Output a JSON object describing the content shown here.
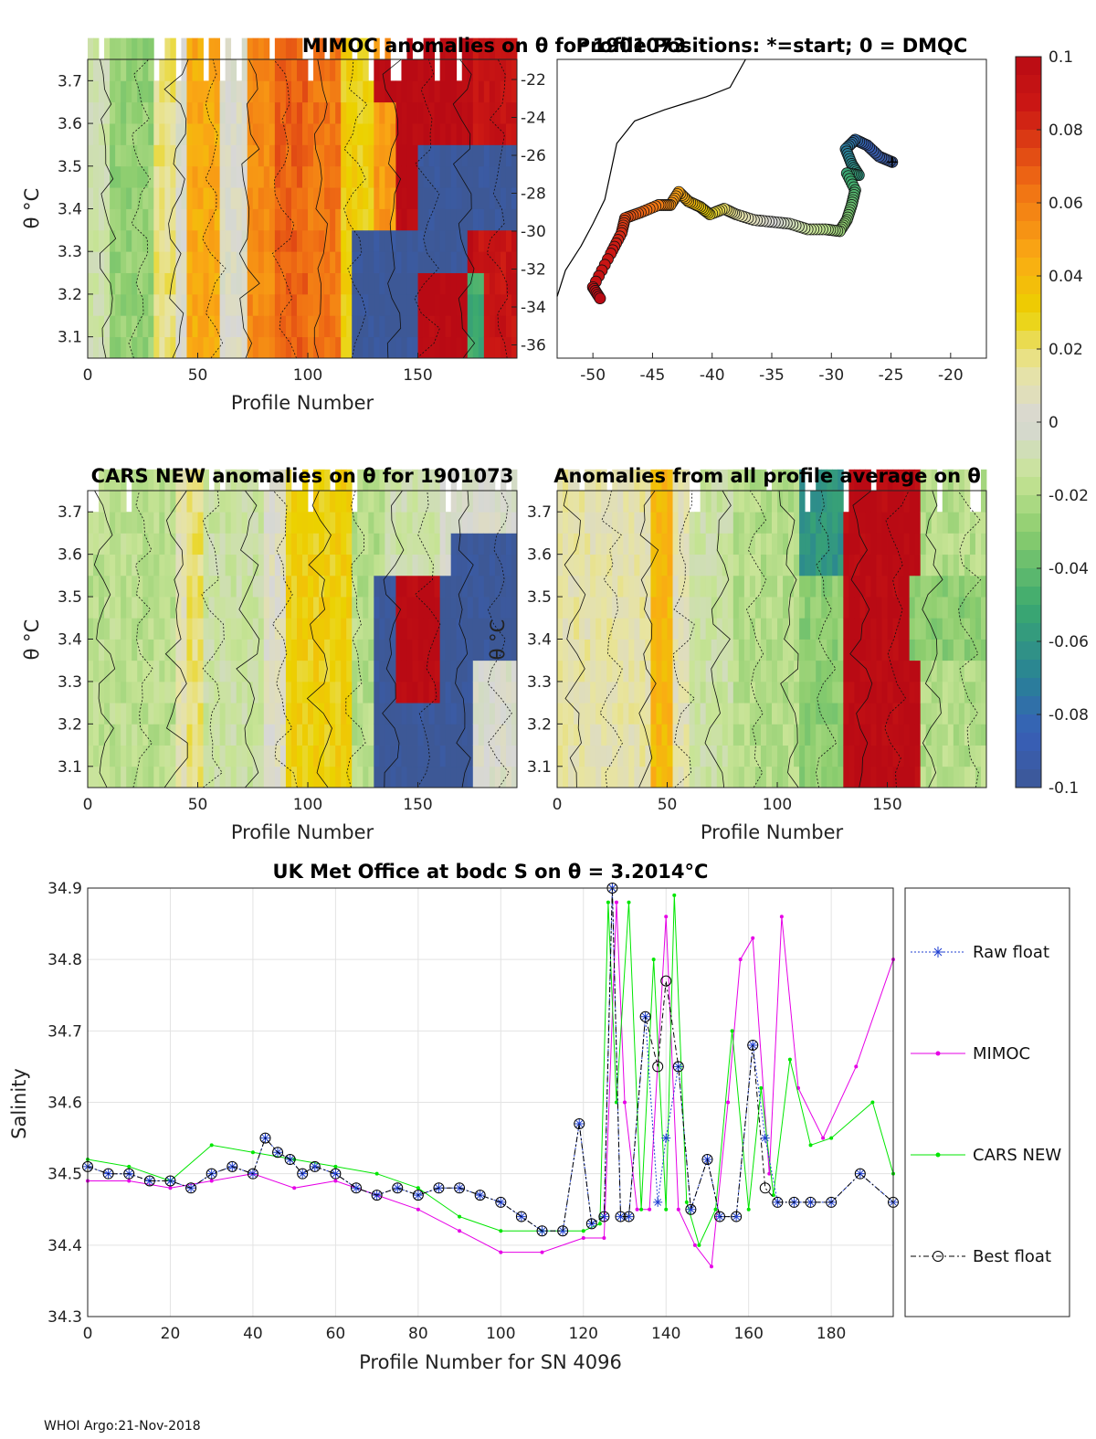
{
  "chart_data": [
    {
      "id": "mimoc",
      "type": "heatmap",
      "title": "MIMOC anomalies on θ  for 1901073",
      "xlabel": "Profile Number",
      "ylabel": "θ °C",
      "xlim": [
        0,
        195
      ],
      "ylim": [
        3.05,
        3.75
      ],
      "xticks": [
        0,
        50,
        100,
        150
      ],
      "yticks": [
        3.1,
        3.2,
        3.3,
        3.4,
        3.5,
        3.6,
        3.7
      ],
      "bands": [
        {
          "x": [
            0,
            45
          ],
          "a": -0.01
        },
        {
          "x": [
            10,
            28
          ],
          "a": -0.028
        },
        {
          "x": [
            28,
            40
          ],
          "a": 0.018
        },
        {
          "x": [
            40,
            45
          ],
          "a": 0.002
        },
        {
          "x": [
            45,
            60
          ],
          "a": 0.045
        },
        {
          "x": [
            60,
            72
          ],
          "a": 0.002
        },
        {
          "x": [
            72,
            85
          ],
          "a": 0.055
        },
        {
          "x": [
            85,
            98
          ],
          "a": 0.068
        },
        {
          "x": [
            98,
            115
          ],
          "a": 0.062
        },
        {
          "x": [
            115,
            128
          ],
          "a": 0.03
        },
        {
          "x": [
            128,
            140
          ],
          "a": 0.05
        },
        {
          "x": [
            140,
            160
          ],
          "a": 0.1
        },
        {
          "x": [
            160,
            175
          ],
          "a": 0.1
        },
        {
          "x": [
            175,
            195
          ],
          "a": 0.09
        }
      ],
      "patches": [
        {
          "x": [
            118,
            150
          ],
          "t": [
            3.05,
            3.32
          ],
          "a": -0.1
        },
        {
          "x": [
            148,
            172
          ],
          "t": [
            3.2,
            3.5
          ],
          "a": -0.1
        },
        {
          "x": [
            160,
            195
          ],
          "t": [
            3.3,
            3.5
          ],
          "a": -0.1
        },
        {
          "x": [
            172,
            180
          ],
          "t": [
            3.05,
            3.2
          ],
          "a": -0.05
        },
        {
          "x": [
            130,
            150
          ],
          "t": [
            3.6,
            3.72
          ],
          "a": 0.1
        }
      ]
    },
    {
      "id": "positions",
      "type": "scatter",
      "title": "Profile Positions: *=start; 0 = DMQC",
      "xlim": [
        -53,
        -17
      ],
      "ylim": [
        -37,
        -21
      ],
      "xticks": [
        -50,
        -45,
        -40,
        -35,
        -30,
        -25,
        -20
      ],
      "yticks": [
        -22,
        -24,
        -26,
        -28,
        -30,
        -32,
        -34,
        -36
      ],
      "coast": [
        [
          -37.2,
          -21
        ],
        [
          -38.5,
          -22.5
        ],
        [
          -40.5,
          -23
        ],
        [
          -42,
          -23.3
        ],
        [
          -44,
          -23.7
        ],
        [
          -46.5,
          -24.3
        ],
        [
          -48,
          -25.5
        ],
        [
          -48.5,
          -27
        ],
        [
          -49,
          -28.5
        ],
        [
          -50,
          -29.8
        ],
        [
          -51,
          -31
        ],
        [
          -52.3,
          -32.3
        ],
        [
          -53,
          -33.7
        ]
      ],
      "track": [
        {
          "lon": -24.9,
          "lat": -26.5
        },
        {
          "lon": -26.0,
          "lat": -26.2
        },
        {
          "lon": -27.0,
          "lat": -25.6
        },
        {
          "lon": -28.0,
          "lat": -25.3
        },
        {
          "lon": -28.8,
          "lat": -25.8
        },
        {
          "lon": -28.3,
          "lat": -26.6
        },
        {
          "lon": -27.7,
          "lat": -27.2
        },
        {
          "lon": -28.7,
          "lat": -27.1
        },
        {
          "lon": -28.0,
          "lat": -28.0
        },
        {
          "lon": -28.3,
          "lat": -28.8
        },
        {
          "lon": -28.7,
          "lat": -29.6
        },
        {
          "lon": -29.3,
          "lat": -30.2
        },
        {
          "lon": -30.5,
          "lat": -30.1
        },
        {
          "lon": -32.0,
          "lat": -30.1
        },
        {
          "lon": -33.5,
          "lat": -29.8
        },
        {
          "lon": -35.0,
          "lat": -29.7
        },
        {
          "lon": -36.5,
          "lat": -29.6
        },
        {
          "lon": -38.0,
          "lat": -29.3
        },
        {
          "lon": -39.0,
          "lat": -29.0
        },
        {
          "lon": -40.2,
          "lat": -29.3
        },
        {
          "lon": -41.0,
          "lat": -28.9
        },
        {
          "lon": -42.0,
          "lat": -28.6
        },
        {
          "lon": -42.8,
          "lat": -28.1
        },
        {
          "lon": -43.5,
          "lat": -28.8
        },
        {
          "lon": -44.5,
          "lat": -28.8
        },
        {
          "lon": -46.0,
          "lat": -29.2
        },
        {
          "lon": -47.3,
          "lat": -29.5
        },
        {
          "lon": -47.6,
          "lat": -30.3
        },
        {
          "lon": -48.5,
          "lat": -31.4
        },
        {
          "lon": -50.0,
          "lat": -33.2
        },
        {
          "lon": -49.4,
          "lat": -33.8
        }
      ]
    },
    {
      "id": "cars",
      "type": "heatmap",
      "title": "CARS NEW anomalies on θ for 1901073",
      "xlabel": "Profile Number",
      "ylabel": "θ °C",
      "xlim": [
        0,
        195
      ],
      "ylim": [
        3.05,
        3.75
      ],
      "xticks": [
        0,
        50,
        100,
        150
      ],
      "yticks": [
        3.1,
        3.2,
        3.3,
        3.4,
        3.5,
        3.6,
        3.7
      ],
      "bands": [
        {
          "x": [
            0,
            40
          ],
          "a": -0.018
        },
        {
          "x": [
            40,
            45
          ],
          "a": 0.01
        },
        {
          "x": [
            45,
            52
          ],
          "a": 0.02
        },
        {
          "x": [
            52,
            80
          ],
          "a": -0.012
        },
        {
          "x": [
            80,
            90
          ],
          "a": 0.005
        },
        {
          "x": [
            90,
            118
          ],
          "a": 0.03
        },
        {
          "x": [
            118,
            135
          ],
          "a": -0.02
        },
        {
          "x": [
            135,
            160
          ],
          "a": -0.01
        },
        {
          "x": [
            160,
            195
          ],
          "a": 0.0
        }
      ],
      "patches": [
        {
          "x": [
            128,
            175
          ],
          "t": [
            3.05,
            3.5
          ],
          "a": -0.1
        },
        {
          "x": [
            165,
            195
          ],
          "t": [
            3.3,
            3.62
          ],
          "a": -0.1
        },
        {
          "x": [
            140,
            160
          ],
          "t": [
            3.2,
            3.5
          ],
          "a": 0.1
        }
      ]
    },
    {
      "id": "allavg",
      "type": "heatmap",
      "title": "Anomalies from all profile average on θ",
      "xlabel": "Profile Number",
      "ylabel": "θ °C",
      "xlim": [
        0,
        195
      ],
      "ylim": [
        3.05,
        3.75
      ],
      "xticks": [
        0,
        50,
        100,
        150
      ],
      "yticks": [
        3.1,
        3.2,
        3.3,
        3.4,
        3.5,
        3.6,
        3.7
      ],
      "bands": [
        {
          "x": [
            0,
            42
          ],
          "a": 0.012
        },
        {
          "x": [
            42,
            52
          ],
          "a": 0.04
        },
        {
          "x": [
            52,
            60
          ],
          "a": 0.01
        },
        {
          "x": [
            60,
            80
          ],
          "a": -0.012
        },
        {
          "x": [
            80,
            110
          ],
          "a": -0.02
        },
        {
          "x": [
            110,
            130
          ],
          "a": -0.03
        },
        {
          "x": [
            130,
            165
          ],
          "a": 0.1
        },
        {
          "x": [
            165,
            195
          ],
          "a": -0.02
        }
      ],
      "patches": [
        {
          "x": [
            110,
            130
          ],
          "t": [
            3.5,
            3.75
          ],
          "a": -0.06
        },
        {
          "x": [
            160,
            195
          ],
          "t": [
            3.3,
            3.5
          ],
          "a": -0.03
        }
      ]
    },
    {
      "id": "colorbar",
      "type": "heatmap",
      "range": [
        -0.1,
        0.1
      ],
      "tick_labels": [
        "0.1",
        "0.08",
        "0.06",
        "0.04",
        "0.02",
        "0",
        "-0.02",
        "-0.04",
        "-0.06",
        "-0.08",
        "-0.1"
      ]
    },
    {
      "id": "salinity",
      "type": "line",
      "title": "UK Met Office at bodc S on θ = 3.2014°C",
      "xlabel": "Profile Number for SN 4096",
      "ylabel": "Salinity",
      "xlim": [
        0,
        195
      ],
      "ylim": [
        34.3,
        34.9
      ],
      "xticks": [
        0,
        20,
        40,
        60,
        80,
        100,
        120,
        140,
        160,
        180
      ],
      "yticks": [
        34.3,
        34.4,
        34.5,
        34.6,
        34.7,
        34.8,
        34.9
      ],
      "series": [
        {
          "name": "MIMOC",
          "color": "#e600e6",
          "x": [
            0,
            10,
            20,
            30,
            40,
            50,
            60,
            70,
            80,
            90,
            100,
            110,
            120,
            125,
            128,
            130,
            133,
            136,
            140,
            143,
            147,
            151,
            155,
            158,
            161,
            165,
            168,
            172,
            178,
            186,
            195
          ],
          "values": [
            34.49,
            34.49,
            34.48,
            34.49,
            34.5,
            34.48,
            34.49,
            34.47,
            34.45,
            34.42,
            34.39,
            34.39,
            34.41,
            34.41,
            34.88,
            34.6,
            34.45,
            34.45,
            34.86,
            34.45,
            34.4,
            34.37,
            34.6,
            34.8,
            34.83,
            34.5,
            34.86,
            34.62,
            34.55,
            34.65,
            34.8
          ]
        },
        {
          "name": "CARS NEW",
          "color": "#00e600",
          "x": [
            0,
            10,
            20,
            30,
            40,
            50,
            60,
            70,
            80,
            90,
            100,
            110,
            120,
            124,
            126,
            128,
            131,
            134,
            137,
            140,
            142,
            145,
            148,
            152,
            156,
            160,
            163,
            166,
            170,
            175,
            180,
            190,
            195
          ],
          "values": [
            34.52,
            34.51,
            34.49,
            34.54,
            34.53,
            34.52,
            34.51,
            34.5,
            34.48,
            34.44,
            34.42,
            34.42,
            34.42,
            34.43,
            34.88,
            34.6,
            34.88,
            34.45,
            34.8,
            34.45,
            34.89,
            34.46,
            34.4,
            34.45,
            34.7,
            34.45,
            34.62,
            34.47,
            34.66,
            34.54,
            34.55,
            34.6,
            34.5
          ]
        },
        {
          "name": "Raw float",
          "color": "#1f3fd1",
          "x": [
            0,
            5,
            10,
            15,
            20,
            25,
            30,
            35,
            40,
            43,
            46,
            49,
            52,
            55,
            60,
            65,
            70,
            75,
            80,
            85,
            90,
            95,
            100,
            105,
            110,
            115,
            119,
            122,
            125,
            127,
            129,
            131,
            135,
            138,
            140,
            143,
            146,
            150,
            153,
            157,
            161,
            164,
            167,
            171,
            175,
            180,
            187,
            195
          ],
          "values": [
            34.51,
            34.5,
            34.5,
            34.49,
            34.49,
            34.48,
            34.5,
            34.51,
            34.5,
            34.55,
            34.53,
            34.52,
            34.5,
            34.51,
            34.5,
            34.48,
            34.47,
            34.48,
            34.47,
            34.48,
            34.48,
            34.47,
            34.46,
            34.44,
            34.42,
            34.42,
            34.57,
            34.43,
            34.44,
            34.9,
            34.44,
            34.44,
            34.72,
            34.46,
            34.55,
            34.65,
            34.45,
            34.52,
            34.44,
            34.44,
            34.68,
            34.55,
            34.46,
            34.46,
            34.46,
            34.46,
            34.5,
            34.46
          ]
        },
        {
          "name": "Best float",
          "color": "#000000",
          "x": [
            0,
            5,
            10,
            15,
            20,
            25,
            30,
            35,
            40,
            43,
            46,
            49,
            52,
            55,
            60,
            65,
            70,
            75,
            80,
            85,
            90,
            95,
            100,
            105,
            110,
            115,
            119,
            122,
            125,
            127,
            129,
            131,
            135,
            138,
            140,
            143,
            146,
            150,
            153,
            157,
            161,
            164,
            167,
            171,
            175,
            180,
            187,
            195
          ],
          "values": [
            34.51,
            34.5,
            34.5,
            34.49,
            34.49,
            34.48,
            34.5,
            34.51,
            34.5,
            34.55,
            34.53,
            34.52,
            34.5,
            34.51,
            34.5,
            34.48,
            34.47,
            34.48,
            34.47,
            34.48,
            34.48,
            34.47,
            34.46,
            34.44,
            34.42,
            34.42,
            34.57,
            34.43,
            34.44,
            34.9,
            34.44,
            34.44,
            34.72,
            34.65,
            34.77,
            34.65,
            34.45,
            34.52,
            34.44,
            34.44,
            34.68,
            34.48,
            34.46,
            34.46,
            34.46,
            34.46,
            34.5,
            34.46
          ]
        }
      ],
      "legend": [
        "Raw float",
        "MIMOC",
        "CARS NEW",
        "Best float"
      ]
    }
  ],
  "footer": "WHOI Argo:21-Nov-2018"
}
